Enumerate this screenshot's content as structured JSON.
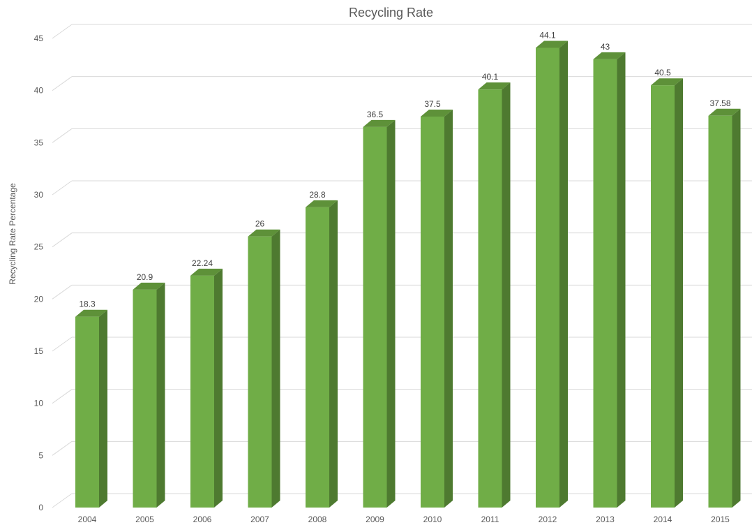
{
  "chart_data": {
    "type": "bar",
    "title": "Recycling Rate",
    "xlabel": "",
    "ylabel": "Recycling Rate Percentage",
    "categories": [
      "2004",
      "2005",
      "2006",
      "2007",
      "2008",
      "2009",
      "2010",
      "2011",
      "2012",
      "2013",
      "2014",
      "2015"
    ],
    "values": [
      18.3,
      20.9,
      22.24,
      26,
      28.8,
      36.5,
      37.5,
      40.1,
      44.1,
      43,
      40.5,
      37.58
    ],
    "data_labels": [
      "18.3",
      "20.9",
      "22.24",
      "26",
      "28.8",
      "36.5",
      "37.5",
      "40.1",
      "44.1",
      "43",
      "40.5",
      "37.58"
    ],
    "ylim": [
      0,
      45
    ],
    "yticks": [
      "0",
      "5",
      "10",
      "15",
      "20",
      "25",
      "30",
      "35",
      "40",
      "45"
    ],
    "grid": true,
    "legend": "none",
    "colors": {
      "bar_front": "#70AD47",
      "bar_side": "#4E7A30",
      "bar_top": "#5E9139",
      "grid": "#D9D9D9"
    }
  }
}
